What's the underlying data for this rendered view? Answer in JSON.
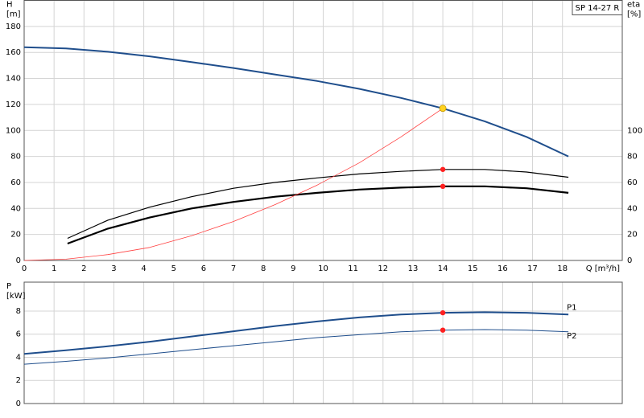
{
  "chart_data": [
    {
      "type": "line",
      "title": "SP 14-27 R",
      "ylabel": [
        "H",
        "[m]"
      ],
      "y2label": [
        "eta",
        "[%]"
      ],
      "xlabel": "Q [m³/h]",
      "xlim": [
        0,
        20
      ],
      "xticks": [
        0,
        1,
        2,
        3,
        4,
        5,
        6,
        7,
        8,
        9,
        10,
        11,
        12,
        13,
        14,
        15,
        16,
        17,
        18
      ],
      "ylim": [
        0,
        200
      ],
      "yticks": [
        0,
        20,
        40,
        60,
        80,
        100,
        120,
        140,
        160,
        180
      ],
      "y2lim": [
        0,
        200
      ],
      "y2ticks": [
        0,
        20,
        40,
        60,
        80,
        100
      ],
      "grid": true,
      "show_xtick_labels": true,
      "series": [
        {
          "color": "#1f4e8c",
          "linewidth": 2,
          "x": [
            0,
            1.4,
            2.8,
            4.2,
            5.6,
            7,
            8.4,
            9.8,
            11.2,
            12.6,
            14,
            15.4,
            16.8,
            18.2
          ],
          "values": [
            164,
            163,
            160.5,
            157,
            152.5,
            148,
            143,
            138,
            132,
            125,
            117,
            107,
            95,
            80
          ]
        },
        {
          "color": "#000000",
          "linewidth": 1.2,
          "axis": "y2",
          "x": [
            1.45,
            2.8,
            4.2,
            5.6,
            7,
            8.4,
            9.8,
            11.2,
            12.6,
            14,
            15.4,
            16.8,
            18.2
          ],
          "values": [
            17,
            31,
            41,
            49,
            55.5,
            60,
            63.5,
            66.5,
            68.5,
            70,
            70,
            68,
            64
          ]
        },
        {
          "color": "#000000",
          "linewidth": 2.2,
          "axis": "y2",
          "x": [
            1.45,
            2.8,
            4.2,
            5.6,
            7,
            8.4,
            9.8,
            11.2,
            12.6,
            14,
            15.4,
            16.8,
            18.2
          ],
          "values": [
            13,
            24.5,
            33,
            40,
            45,
            49,
            52,
            54.5,
            56,
            57,
            57,
            55.5,
            52
          ]
        },
        {
          "color": "#ff4040",
          "linewidth": 0.8,
          "x": [
            0,
            1.4,
            2.8,
            4.2,
            5.6,
            7,
            8.4,
            9.8,
            11.2,
            12.6,
            14
          ],
          "values": [
            0,
            1,
            4.5,
            10,
            19,
            30,
            43,
            58,
            75,
            95,
            117
          ]
        }
      ],
      "points": [
        {
          "x": 14,
          "y": 117,
          "color": "#ffd21f"
        },
        {
          "x": 14,
          "y": 70,
          "color": "#ff2020",
          "axis": "y2"
        },
        {
          "x": 14,
          "y": 57,
          "color": "#ff2020",
          "axis": "y2"
        }
      ]
    },
    {
      "type": "line",
      "ylabel": [
        "P",
        "[kW]"
      ],
      "xlim": [
        0,
        20
      ],
      "xticks": [
        0,
        1,
        2,
        3,
        4,
        5,
        6,
        7,
        8,
        9,
        10,
        11,
        12,
        13,
        14,
        15,
        16,
        17,
        18
      ],
      "ylim": [
        0,
        10.5
      ],
      "yticks": [
        0,
        2,
        4,
        6,
        8
      ],
      "grid": true,
      "show_xtick_labels": false,
      "series": [
        {
          "name": "P1",
          "color": "#1f4e8c",
          "linewidth": 2,
          "x": [
            0,
            1.4,
            2.8,
            4.2,
            5.6,
            7,
            8.4,
            9.8,
            11.2,
            12.6,
            14,
            15.4,
            16.8,
            18.2
          ],
          "values": [
            4.3,
            4.6,
            4.95,
            5.35,
            5.8,
            6.25,
            6.7,
            7.1,
            7.45,
            7.7,
            7.85,
            7.9,
            7.85,
            7.7
          ]
        },
        {
          "name": "P2",
          "color": "#1f4e8c",
          "linewidth": 1,
          "x": [
            0,
            1.4,
            2.8,
            4.2,
            5.6,
            7,
            8.4,
            9.8,
            11.2,
            12.6,
            14,
            15.4,
            16.8,
            18.2
          ],
          "values": [
            3.4,
            3.65,
            3.95,
            4.3,
            4.65,
            5.0,
            5.35,
            5.7,
            5.95,
            6.2,
            6.35,
            6.4,
            6.35,
            6.2
          ]
        }
      ],
      "points": [
        {
          "x": 14,
          "y": 7.85,
          "color": "#ff2020"
        },
        {
          "x": 14,
          "y": 6.35,
          "color": "#ff2020"
        }
      ]
    }
  ]
}
